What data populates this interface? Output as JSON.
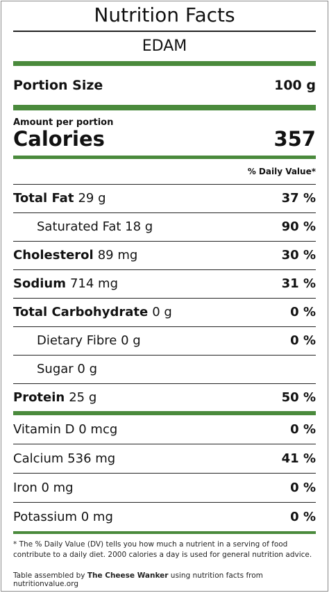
{
  "title": "Nutrition Facts",
  "product": "EDAM",
  "portion": {
    "label": "Portion Size",
    "value": "100 g"
  },
  "amount_label": "Amount per portion",
  "calories": {
    "label": "Calories",
    "value": "357"
  },
  "daily_value_header": "% Daily Value*",
  "nutrients": [
    {
      "name": "Total Fat",
      "amount": "29 g",
      "dv": "37 %"
    },
    {
      "name": "Saturated Fat 18 g",
      "amount": "",
      "dv": "90 %"
    },
    {
      "name": "Cholesterol",
      "amount": "89 mg",
      "dv": "30 %"
    },
    {
      "name": "Sodium",
      "amount": "714 mg",
      "dv": "31 %"
    },
    {
      "name": "Total Carbohydrate",
      "amount": "0 g",
      "dv": "0 %"
    },
    {
      "name": "Dietary Fibre 0 g",
      "amount": "",
      "dv": "0 %"
    },
    {
      "name": "Sugar 0 g",
      "amount": "",
      "dv": ""
    },
    {
      "name": "Protein",
      "amount": "25 g",
      "dv": "50 %"
    }
  ],
  "vitamins": [
    {
      "name": "Vitamin D 0 mcg",
      "dv": "0 %"
    },
    {
      "name": "Calcium 536 mg",
      "dv": "41 %"
    },
    {
      "name": "Iron 0 mg",
      "dv": "0 %"
    },
    {
      "name": "Potassium 0 mg",
      "dv": "0 %"
    }
  ],
  "footnote": "* The % Daily Value (DV) tells you how much a nutrient in a serving of food contribute to a daily diet. 2000 calories a day is used for general nutrition advice.",
  "credit": {
    "prefix": "Table assembled by ",
    "author": "The Cheese Wanker",
    "suffix": " using nutrition facts from nutritionvalue.org"
  },
  "colors": {
    "accent": "#4a8a3c",
    "text": "#111111"
  }
}
